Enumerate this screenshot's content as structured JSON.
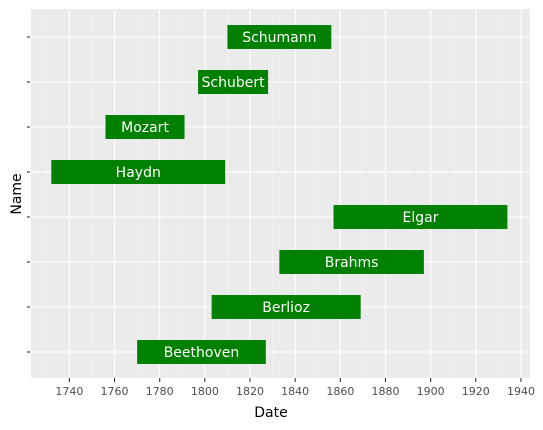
{
  "chart_data": {
    "type": "bar",
    "orientation": "horizontal",
    "title": "",
    "xlabel": "Date",
    "ylabel": "Name",
    "xlim": [
      1723,
      1944
    ],
    "x_ticks": [
      1740,
      1760,
      1780,
      1800,
      1820,
      1840,
      1860,
      1880,
      1900,
      1920,
      1940
    ],
    "grid": true,
    "legend": "none",
    "bar_color": "#008000",
    "panel_color": "#ebebeb",
    "bars": [
      {
        "name": "Beethoven",
        "start": 1770,
        "end": 1827
      },
      {
        "name": "Berlioz",
        "start": 1803,
        "end": 1869
      },
      {
        "name": "Brahms",
        "start": 1833,
        "end": 1897
      },
      {
        "name": "Elgar",
        "start": 1857,
        "end": 1934
      },
      {
        "name": "Haydn",
        "start": 1732,
        "end": 1809
      },
      {
        "name": "Mozart",
        "start": 1756,
        "end": 1791
      },
      {
        "name": "Schubert",
        "start": 1797,
        "end": 1828
      },
      {
        "name": "Schumann",
        "start": 1810,
        "end": 1856
      }
    ]
  }
}
